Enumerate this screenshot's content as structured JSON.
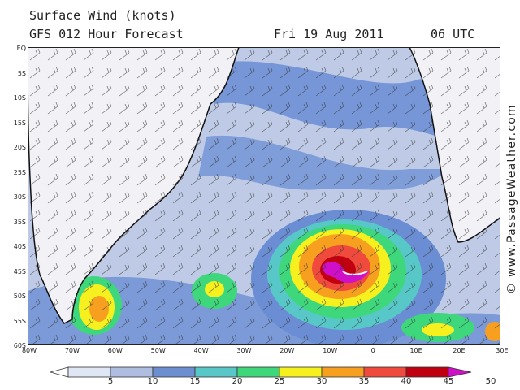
{
  "header": {
    "line1": "Surface Wind (knots)",
    "line2_left": "GFS 012 Hour Forecast",
    "date": "Fri 19 Aug 2011",
    "time": "06 UTC"
  },
  "credit": "© www.PassageWeather.com",
  "axes": {
    "lat_labels": [
      "EQ",
      "5S",
      "10S",
      "15S",
      "20S",
      "25S",
      "30S",
      "35S",
      "40S",
      "45S",
      "50S",
      "55S",
      "60S"
    ],
    "lon_labels": [
      "80W",
      "70W",
      "60W",
      "50W",
      "40W",
      "30W",
      "20W",
      "10W",
      "0",
      "10E",
      "20E",
      "30E"
    ]
  },
  "colorbar": {
    "labels": [
      "5",
      "10",
      "15",
      "20",
      "25",
      "30",
      "35",
      "40",
      "45",
      "50"
    ],
    "colors": [
      "#ffffff",
      "#dfe6f4",
      "#aebde0",
      "#6d8fd1",
      "#57c7c7",
      "#3ed77c",
      "#f6f01e",
      "#f7a020",
      "#ef4a3c",
      "#c00010",
      "#d010c8"
    ]
  },
  "map_colors": {
    "land": "#f2f2f6",
    "ocean_calm": "#bfcbe6",
    "ocean_band": "#6a8dd3",
    "cyclone": [
      "#57c7c7",
      "#3ed77c",
      "#f6f01e",
      "#f7a020",
      "#ef4a3c",
      "#c00010",
      "#d010c8"
    ]
  }
}
